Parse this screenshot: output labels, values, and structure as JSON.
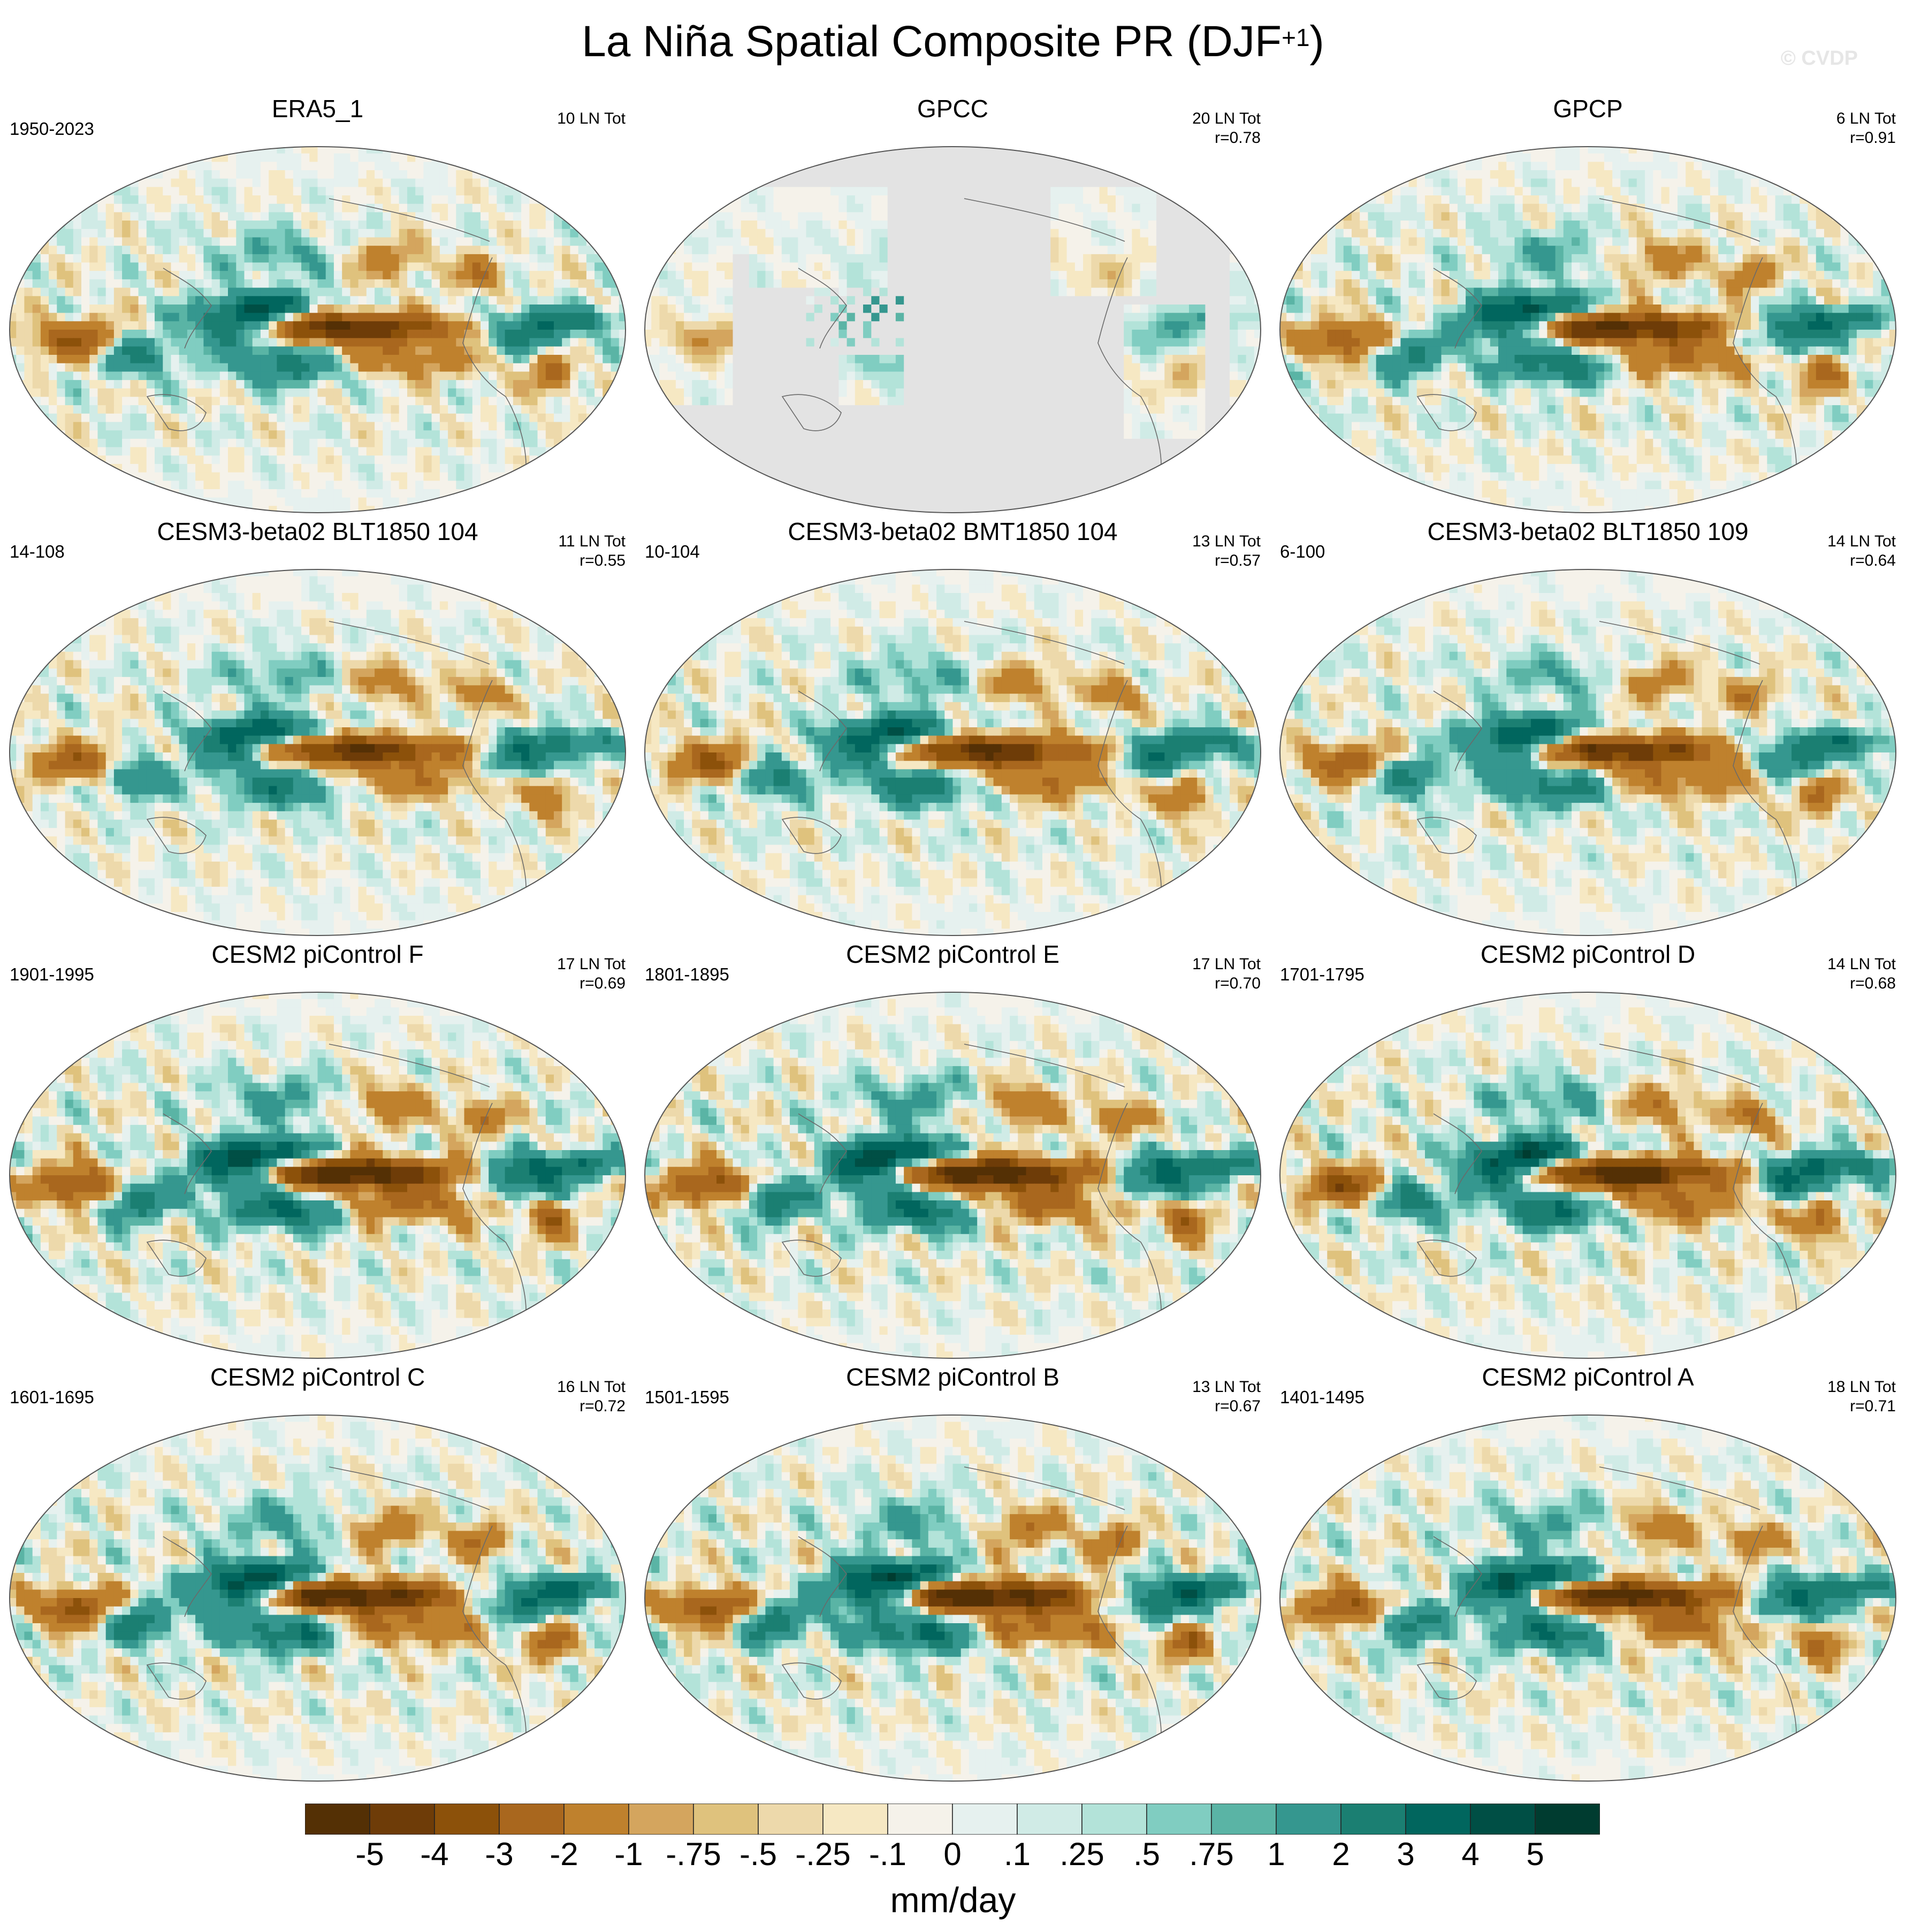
{
  "title": "La Niña Spatial Composite PR (DJF",
  "title_sup": "+1",
  "title_close": ")",
  "watermark": "© CVDP",
  "chart_data": {
    "type": "heatmap",
    "projection": "robinson-like global maps, Pacific-centered",
    "variable": "PR",
    "season": "DJF+1",
    "panels": [
      {
        "name": "ERA5_1",
        "period": "1950-2023",
        "events": "10 LN Tot",
        "r": "",
        "style": "obs",
        "seed": 11,
        "amp": 1.0
      },
      {
        "name": "GPCC",
        "period": "",
        "events": "20 LN Tot",
        "r": "r=0.78",
        "style": "landonly",
        "seed": 23,
        "amp": 0.6
      },
      {
        "name": "GPCP",
        "period": "",
        "events": "6 LN Tot",
        "r": "r=0.91",
        "style": "obs",
        "seed": 37,
        "amp": 1.05
      },
      {
        "name": "CESM3-beta02 BLT1850 104",
        "period": "14-108",
        "events": "11 LN Tot",
        "r": "r=0.55",
        "style": "model",
        "seed": 41,
        "amp": 0.95
      },
      {
        "name": "CESM3-beta02 BMT1850 104",
        "period": "10-104",
        "events": "13 LN Tot",
        "r": "r=0.57",
        "style": "model",
        "seed": 53,
        "amp": 1.0
      },
      {
        "name": "CESM3-beta02 BLT1850 109",
        "period": "6-100",
        "events": "14 LN Tot",
        "r": "r=0.64",
        "style": "model",
        "seed": 67,
        "amp": 0.95
      },
      {
        "name": "CESM2 piControl F",
        "period": "1901-1995",
        "events": "17 LN Tot",
        "r": "r=0.69",
        "style": "model",
        "seed": 71,
        "amp": 1.2
      },
      {
        "name": "CESM2 piControl E",
        "period": "1801-1895",
        "events": "17 LN Tot",
        "r": "r=0.70",
        "style": "model",
        "seed": 83,
        "amp": 1.2
      },
      {
        "name": "CESM2 piControl D",
        "period": "1701-1795",
        "events": "14 LN Tot",
        "r": "r=0.68",
        "style": "model",
        "seed": 97,
        "amp": 1.15
      },
      {
        "name": "CESM2 piControl C",
        "period": "1601-1695",
        "events": "16 LN Tot",
        "r": "r=0.72",
        "style": "model",
        "seed": 101,
        "amp": 1.15
      },
      {
        "name": "CESM2 piControl B",
        "period": "1501-1595",
        "events": "13 LN Tot",
        "r": "r=0.67",
        "style": "model",
        "seed": 113,
        "amp": 1.2
      },
      {
        "name": "CESM2 piControl A",
        "period": "1401-1495",
        "events": "18 LN Tot",
        "r": "r=0.71",
        "style": "model",
        "seed": 127,
        "amp": 1.1
      }
    ],
    "colorbar": {
      "levels": [
        "-5",
        "-4",
        "-3",
        "-2",
        "-1",
        "-.75",
        "-.5",
        "-.25",
        "-.1",
        "0",
        ".1",
        ".25",
        ".5",
        ".75",
        "1",
        "2",
        "3",
        "4",
        "5"
      ],
      "level_values": [
        -5,
        -4,
        -3,
        -2,
        -1,
        -0.75,
        -0.5,
        -0.25,
        -0.1,
        0,
        0.1,
        0.25,
        0.5,
        0.75,
        1,
        2,
        3,
        4,
        5
      ],
      "colors": [
        "#543005",
        "#6e3c08",
        "#8c510a",
        "#a9671e",
        "#bf812d",
        "#d4a55e",
        "#dfc27d",
        "#edd9ab",
        "#f6e8c3",
        "#f5f2ea",
        "#e6f1ef",
        "#d0ebe6",
        "#b3e3d9",
        "#80cdc1",
        "#5ab4a5",
        "#35978f",
        "#1b7f72",
        "#01665e",
        "#004f45",
        "#003c30"
      ],
      "units": "mm/day"
    }
  }
}
